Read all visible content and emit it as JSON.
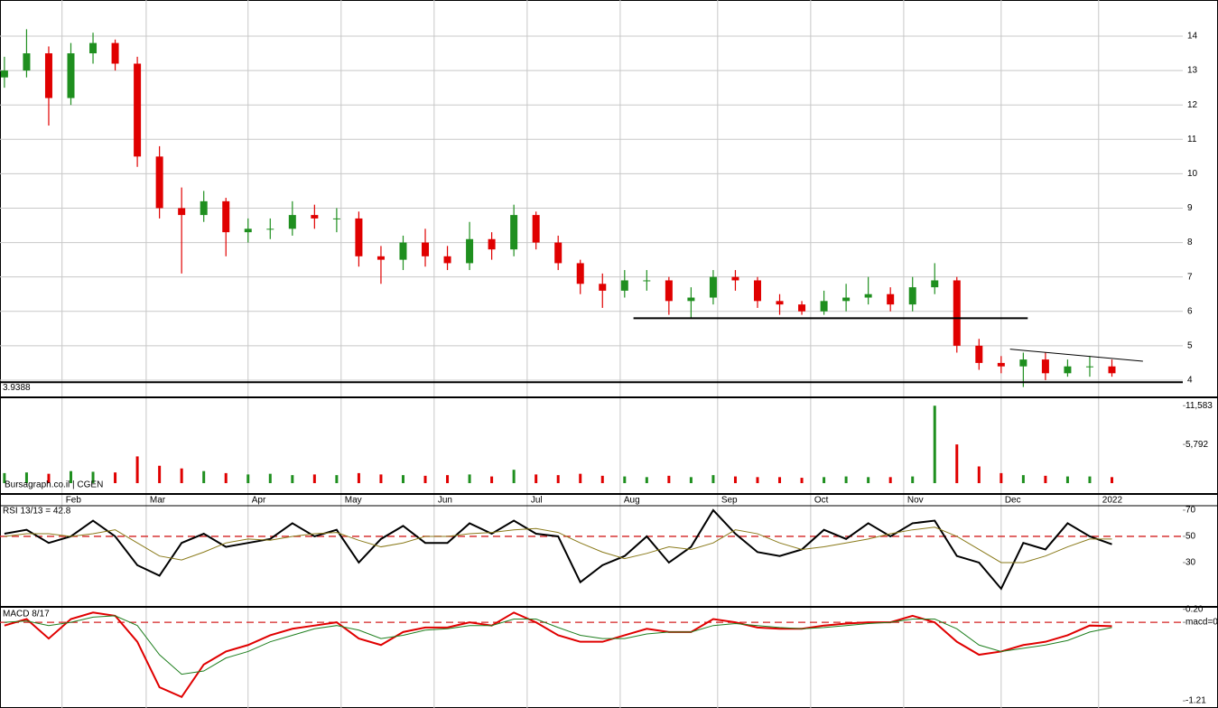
{
  "chart_data": [
    {
      "type": "candlestick",
      "x": [
        1,
        6,
        11,
        16,
        21,
        26,
        31,
        36,
        41,
        46,
        51,
        56,
        61,
        66,
        71,
        76,
        81,
        86,
        91,
        96,
        101,
        106,
        111,
        116,
        121,
        126,
        131,
        136,
        141,
        146,
        151,
        156,
        161,
        166,
        171,
        176,
        181,
        186,
        191,
        196,
        201,
        206,
        211,
        216,
        221,
        226,
        231,
        236,
        241,
        246,
        251
      ],
      "open": [
        12.8,
        13.0,
        13.5,
        12.2,
        13.5,
        13.8,
        13.2,
        10.5,
        9.0,
        8.8,
        9.2,
        8.3,
        8.4,
        8.4,
        8.8,
        8.7,
        8.7,
        7.6,
        7.5,
        8.0,
        7.6,
        7.4,
        8.1,
        7.8,
        8.8,
        8.0,
        7.4,
        6.8,
        6.6,
        6.9,
        6.9,
        6.3,
        6.4,
        7.0,
        6.9,
        6.3,
        6.2,
        6.0,
        6.3,
        6.4,
        6.5,
        6.2,
        6.7,
        6.9,
        5.0,
        4.5,
        4.4,
        4.6,
        4.2,
        4.4,
        4.4
      ],
      "high": [
        13.4,
        14.2,
        13.7,
        13.8,
        14.1,
        13.9,
        13.4,
        10.8,
        9.6,
        9.5,
        9.3,
        8.7,
        8.7,
        9.2,
        9.1,
        9.0,
        8.9,
        7.9,
        8.2,
        8.4,
        7.9,
        8.6,
        8.3,
        9.1,
        8.9,
        8.2,
        7.5,
        7.1,
        7.2,
        7.2,
        7.0,
        6.7,
        7.2,
        7.2,
        7.0,
        6.5,
        6.3,
        6.6,
        6.8,
        7.0,
        6.7,
        7.0,
        7.4,
        7.0,
        5.2,
        4.7,
        4.8,
        4.8,
        4.6,
        4.7,
        4.6
      ],
      "low": [
        12.5,
        12.8,
        11.4,
        12.0,
        13.2,
        13.0,
        10.2,
        8.7,
        7.1,
        8.6,
        7.6,
        8.0,
        8.1,
        8.2,
        8.4,
        8.3,
        7.3,
        6.8,
        7.2,
        7.3,
        7.2,
        7.2,
        7.5,
        7.6,
        7.8,
        7.2,
        6.5,
        6.1,
        6.4,
        6.6,
        5.9,
        5.8,
        6.2,
        6.6,
        6.1,
        5.9,
        5.9,
        5.9,
        6.0,
        6.2,
        6.0,
        6.0,
        6.5,
        4.8,
        4.3,
        4.2,
        3.8,
        4.0,
        4.1,
        4.1,
        4.1
      ],
      "close": [
        13.0,
        13.5,
        12.2,
        13.5,
        13.8,
        13.2,
        10.5,
        9.0,
        8.8,
        9.2,
        8.3,
        8.4,
        8.4,
        8.8,
        8.7,
        8.7,
        7.6,
        7.5,
        8.0,
        7.6,
        7.4,
        8.1,
        7.8,
        8.8,
        8.0,
        7.4,
        6.8,
        6.6,
        6.9,
        6.9,
        6.3,
        6.4,
        7.0,
        6.9,
        6.3,
        6.2,
        6.0,
        6.3,
        6.4,
        6.5,
        6.2,
        6.7,
        6.9,
        5.0,
        4.5,
        4.4,
        4.6,
        4.2,
        4.4,
        4.4,
        4.2
      ],
      "up_color": "#1f8f1f",
      "down_color": "#e00000",
      "xlim": [
        0,
        267
      ],
      "ylim": [
        3.5,
        15.05
      ],
      "xticks": [
        {
          "value": 14,
          "label": "Feb"
        },
        {
          "value": 33,
          "label": "Mar"
        },
        {
          "value": 56,
          "label": "Apr"
        },
        {
          "value": 77,
          "label": "May"
        },
        {
          "value": 98,
          "label": "Jun"
        },
        {
          "value": 119,
          "label": "Jul"
        },
        {
          "value": 140,
          "label": "Aug"
        },
        {
          "value": 162,
          "label": "Sep"
        },
        {
          "value": 183,
          "label": "Oct"
        },
        {
          "value": 204,
          "label": "Nov"
        },
        {
          "value": 226,
          "label": "Dec"
        },
        {
          "value": 248,
          "label": "2022"
        }
      ],
      "yticks": [
        4,
        5,
        6,
        7,
        8,
        9,
        10,
        11,
        12,
        13,
        14
      ],
      "grid": true,
      "hline": 3.9388,
      "trend_lines": [
        {
          "x": [
            143,
            232
          ],
          "y": [
            5.8,
            5.8
          ]
        },
        {
          "x": [
            228,
            258
          ],
          "y": [
            4.9,
            4.55
          ]
        }
      ]
    },
    {
      "type": "bar",
      "title": "Bursagraph.co.il | CGEN",
      "values": [
        1500,
        1600,
        1400,
        1800,
        1700,
        1600,
        4000,
        2600,
        2200,
        1800,
        1500,
        1300,
        1400,
        1200,
        1300,
        1200,
        1500,
        1300,
        1200,
        1100,
        1200,
        1300,
        1000,
        2000,
        1300,
        1200,
        1400,
        1100,
        1000,
        900,
        1100,
        900,
        1200,
        1000,
        900,
        900,
        800,
        900,
        1000,
        900,
        900,
        1000,
        11583,
        5792,
        2500,
        1500,
        1200,
        1100,
        1000,
        1000,
        900
      ],
      "ylim": [
        0,
        12700
      ],
      "yticks": [
        {
          "value": 5792,
          "label": "5,792"
        },
        {
          "value": 11583,
          "label": "11,583"
        }
      ]
    },
    {
      "type": "line",
      "title": "RSI 13/13 = 42.8",
      "series": [
        {
          "color": "#000000",
          "values": [
            52,
            55,
            45,
            50,
            62,
            50,
            28,
            20,
            45,
            52,
            42,
            45,
            48,
            60,
            50,
            55,
            30,
            48,
            58,
            45,
            45,
            60,
            52,
            62,
            52,
            50,
            15,
            28,
            35,
            50,
            30,
            42,
            70,
            52,
            38,
            35,
            40,
            55,
            48,
            60,
            50,
            60,
            62,
            35,
            30,
            10,
            45,
            40,
            60,
            50,
            44
          ]
        },
        {
          "color": "#8a7a1a",
          "values": [
            50,
            52,
            52,
            50,
            52,
            55,
            45,
            35,
            32,
            38,
            45,
            48,
            47,
            50,
            52,
            53,
            47,
            42,
            45,
            50,
            50,
            52,
            53,
            55,
            56,
            53,
            45,
            38,
            33,
            37,
            42,
            40,
            45,
            55,
            52,
            45,
            40,
            42,
            45,
            48,
            52,
            55,
            57,
            50,
            40,
            30,
            30,
            35,
            42,
            48,
            48
          ]
        }
      ],
      "ylim": [
        -3.8,
        73.4
      ],
      "yticks": [
        30,
        50,
        70
      ],
      "hline": 50
    },
    {
      "type": "line",
      "title": "MACD 8/17",
      "series": [
        {
          "color": "#e00000",
          "values": [
            -0.05,
            0.05,
            -0.25,
            0.05,
            0.15,
            0.1,
            -0.3,
            -1.0,
            -1.15,
            -0.65,
            -0.45,
            -0.35,
            -0.2,
            -0.1,
            -0.05,
            0.0,
            -0.25,
            -0.35,
            -0.15,
            -0.08,
            -0.08,
            0.0,
            -0.05,
            0.15,
            0.0,
            -0.2,
            -0.3,
            -0.3,
            -0.2,
            -0.1,
            -0.15,
            -0.15,
            0.05,
            0.0,
            -0.08,
            -0.1,
            -0.1,
            -0.05,
            -0.02,
            0.0,
            0.0,
            0.1,
            0.0,
            -0.3,
            -0.5,
            -0.45,
            -0.35,
            -0.3,
            -0.2,
            -0.05,
            -0.06
          ]
        },
        {
          "color": "#1f7f1f",
          "values": [
            0,
            0.02,
            -0.05,
            0.0,
            0.08,
            0.1,
            -0.05,
            -0.5,
            -0.8,
            -0.75,
            -0.55,
            -0.45,
            -0.3,
            -0.2,
            -0.1,
            -0.05,
            -0.12,
            -0.25,
            -0.2,
            -0.12,
            -0.1,
            -0.05,
            -0.05,
            0.05,
            0.05,
            -0.08,
            -0.2,
            -0.25,
            -0.25,
            -0.18,
            -0.15,
            -0.15,
            -0.05,
            -0.02,
            -0.05,
            -0.08,
            -0.1,
            -0.08,
            -0.05,
            -0.02,
            0.0,
            0.05,
            0.05,
            -0.1,
            -0.35,
            -0.45,
            -0.4,
            -0.35,
            -0.28,
            -0.15,
            -0.08
          ]
        }
      ],
      "ylim": [
        -1.32,
        0.21
      ],
      "yticks": [
        {
          "value": 0.2,
          "label": "0.20"
        },
        {
          "value": 0,
          "label": "macd=0"
        },
        -1.21
      ],
      "hline": 0
    }
  ]
}
